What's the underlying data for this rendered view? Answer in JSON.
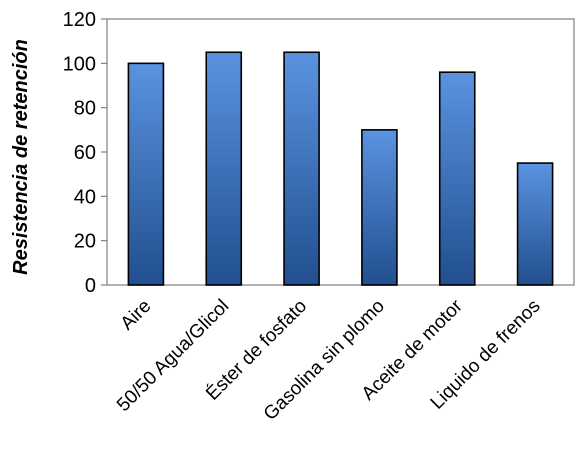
{
  "chart_data": {
    "type": "bar",
    "title": "",
    "xlabel": "",
    "ylabel": "Resistencia de retención",
    "categories": [
      "Aire",
      "50/50 Agua/Glicol",
      "Éster de fosfato",
      "Gasolina sin plomo",
      "Aceite de motor",
      "Liquido de frenos"
    ],
    "values": [
      100,
      105,
      105,
      70,
      96,
      55
    ],
    "ylim": [
      0,
      120
    ],
    "yticks": [
      0,
      20,
      40,
      60,
      80,
      100,
      120
    ],
    "grid": false,
    "legend": "none",
    "colors": {
      "bar_top": "#5b93e0",
      "bar_bottom": "#214f8f",
      "bar_edge": "#000000",
      "axis": "#808080"
    }
  }
}
